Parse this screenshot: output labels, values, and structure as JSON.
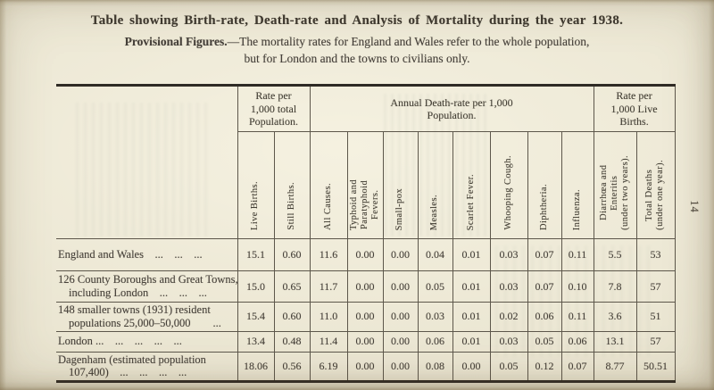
{
  "page": {
    "side_number": "14"
  },
  "header": {
    "title": "Table showing Birth-rate, Death-rate and Analysis of Mortality during the year 1938.",
    "subtitle_bold": "Provisional Figures.",
    "subtitle_rest": "—The mortality rates for England and Wales refer to the whole population,",
    "subtitle_line2": "but for London and the towns to civilians only."
  },
  "colors": {
    "paper": "#e9e4d0",
    "ink": "#46413a",
    "rule": "#5d574b"
  },
  "table": {
    "group_headers": [
      {
        "label": "Rate per\n1,000 total\nPopulation.",
        "span": 2
      },
      {
        "label": "Annual Death-rate per 1,000\nPopulation.",
        "span": 8
      },
      {
        "label": "Rate per\n1,000 Live\nBirths.",
        "span": 2
      }
    ],
    "columns": [
      "Live Births.",
      "Still Births.",
      "All Causes.",
      "Typhoid and\nParatyphoid\nFevers.",
      "Small-pox",
      "Measles.",
      "Scarlet Fever.",
      "Whooping Cough.",
      "Diphtheria.",
      "Influenza.",
      "Diarrhœa and\nEnteritis\n(under two years).",
      "Total Deaths\n(under one year)."
    ],
    "rows": [
      {
        "label_lines": [
          "England and Wales ... ... ..."
        ],
        "values": [
          "15.1",
          "0.60",
          "11.6",
          "0.00",
          "0.00",
          "0.04",
          "0.01",
          "0.03",
          "0.07",
          "0.11",
          "5.5",
          "53"
        ]
      },
      {
        "label_lines": [
          "126 County Boroughs and Great Towns,",
          "including London ... ... ..."
        ],
        "values": [
          "15.0",
          "0.65",
          "11.7",
          "0.00",
          "0.00",
          "0.05",
          "0.01",
          "0.03",
          "0.07",
          "0.10",
          "7.8",
          "57"
        ]
      },
      {
        "label_lines": [
          "148 smaller towns (1931) resident",
          "populations 25,000–50,000  ..."
        ],
        "values": [
          "15.4",
          "0.60",
          "11.0",
          "0.00",
          "0.00",
          "0.03",
          "0.01",
          "0.02",
          "0.06",
          "0.11",
          "3.6",
          "51"
        ]
      },
      {
        "label_lines": [
          "London ... ... ... ... ..."
        ],
        "values": [
          "13.4",
          "0.48",
          "11.4",
          "0.00",
          "0.00",
          "0.06",
          "0.01",
          "0.03",
          "0.05",
          "0.06",
          "13.1",
          "57"
        ]
      },
      {
        "label_lines": [
          "Dagenham (estimated population",
          "107,400) ... ... ... ..."
        ],
        "values": [
          "18.06",
          "0.56",
          "6.19",
          "0.00",
          "0.00",
          "0.08",
          "0.00",
          "0.05",
          "0.12",
          "0.07",
          "8.77",
          "50.51"
        ]
      }
    ]
  }
}
